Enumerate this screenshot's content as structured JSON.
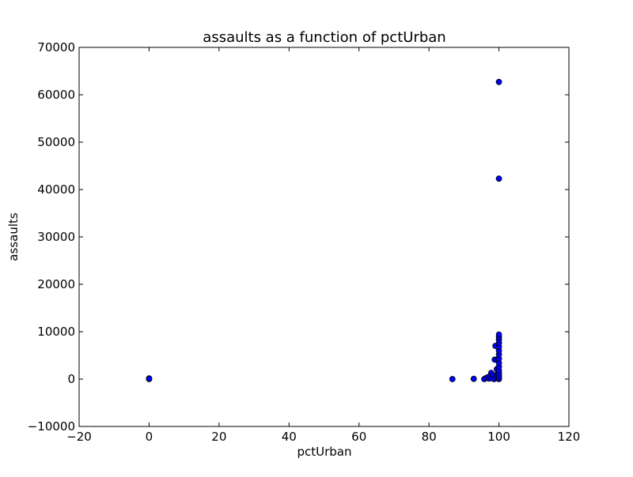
{
  "chart_data": {
    "type": "scatter",
    "title": "assaults as a function of pctUrban",
    "xlabel": "pctUrban",
    "ylabel": "assaults",
    "xlim": [
      -20,
      120
    ],
    "ylim": [
      -10000,
      70000
    ],
    "xticks": [
      -20,
      0,
      20,
      40,
      60,
      80,
      100,
      120
    ],
    "yticks": [
      -10000,
      0,
      10000,
      20000,
      30000,
      40000,
      50000,
      60000,
      70000
    ],
    "xtick_labels": [
      "−20",
      "0",
      "20",
      "40",
      "60",
      "80",
      "100",
      "120"
    ],
    "ytick_labels": [
      "−10000",
      "0",
      "10000",
      "20000",
      "30000",
      "40000",
      "50000",
      "60000",
      "70000"
    ],
    "grid": false,
    "marker_color": "#0000ff",
    "marker_edge_color": "#000000",
    "points": [
      {
        "x": 0,
        "y": 0
      },
      {
        "x": 0,
        "y": 150
      },
      {
        "x": 0,
        "y": 80
      },
      {
        "x": 86.7,
        "y": 0
      },
      {
        "x": 92.8,
        "y": 50
      },
      {
        "x": 95.8,
        "y": 0
      },
      {
        "x": 96.3,
        "y": 200
      },
      {
        "x": 96.8,
        "y": 400
      },
      {
        "x": 97.2,
        "y": 100
      },
      {
        "x": 97.5,
        "y": 600
      },
      {
        "x": 97.8,
        "y": 1300
      },
      {
        "x": 98.0,
        "y": 200
      },
      {
        "x": 98.3,
        "y": 800
      },
      {
        "x": 98.6,
        "y": 0
      },
      {
        "x": 98.8,
        "y": 4100
      },
      {
        "x": 99.0,
        "y": 7000
      },
      {
        "x": 99.2,
        "y": 300
      },
      {
        "x": 99.4,
        "y": 2100
      },
      {
        "x": 99.5,
        "y": 1000
      },
      {
        "x": 99.6,
        "y": 4200
      },
      {
        "x": 99.7,
        "y": 600
      },
      {
        "x": 99.8,
        "y": 100
      },
      {
        "x": 99.9,
        "y": 1500
      },
      {
        "x": 100,
        "y": 0
      },
      {
        "x": 100,
        "y": 300
      },
      {
        "x": 100,
        "y": 700
      },
      {
        "x": 100,
        "y": 1200
      },
      {
        "x": 100,
        "y": 1800
      },
      {
        "x": 100,
        "y": 2600
      },
      {
        "x": 100,
        "y": 3400
      },
      {
        "x": 100,
        "y": 4300
      },
      {
        "x": 100,
        "y": 5200
      },
      {
        "x": 100,
        "y": 6000
      },
      {
        "x": 100,
        "y": 6800
      },
      {
        "x": 100,
        "y": 7600
      },
      {
        "x": 100,
        "y": 8300
      },
      {
        "x": 100,
        "y": 8900
      },
      {
        "x": 100,
        "y": 9400
      },
      {
        "x": 100,
        "y": 42300
      },
      {
        "x": 100,
        "y": 62700
      }
    ]
  }
}
